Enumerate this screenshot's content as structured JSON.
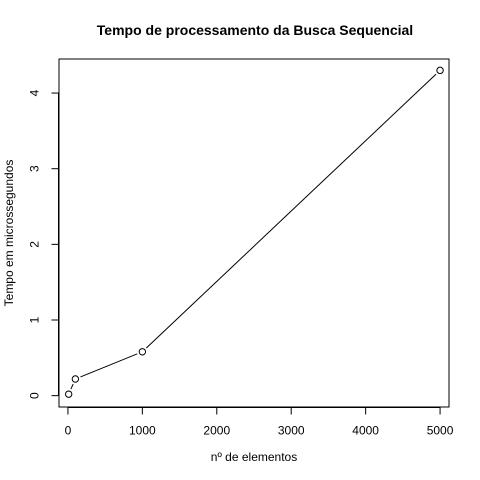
{
  "chart_data": {
    "type": "line",
    "title": "Tempo de processamento da Busca Sequencial",
    "xlabel": "nº de elementos",
    "ylabel": "Tempo em microssegundos",
    "x": [
      10,
      100,
      1000,
      5000
    ],
    "series": [
      {
        "values": [
          0.02,
          0.22,
          0.58,
          4.3
        ]
      }
    ],
    "xlim": [
      -120,
      5120
    ],
    "ylim": [
      -0.15,
      4.45
    ],
    "xticks": [
      0,
      1000,
      2000,
      3000,
      4000,
      5000
    ],
    "yticks": [
      0,
      1,
      2,
      3,
      4
    ],
    "xtick_labels": [
      "0",
      "1000",
      "2000",
      "3000",
      "4000",
      "5000"
    ],
    "ytick_labels": [
      "0",
      "1",
      "2",
      "3",
      "4"
    ],
    "markers": "open-circle",
    "grid": false,
    "legend": "none"
  }
}
